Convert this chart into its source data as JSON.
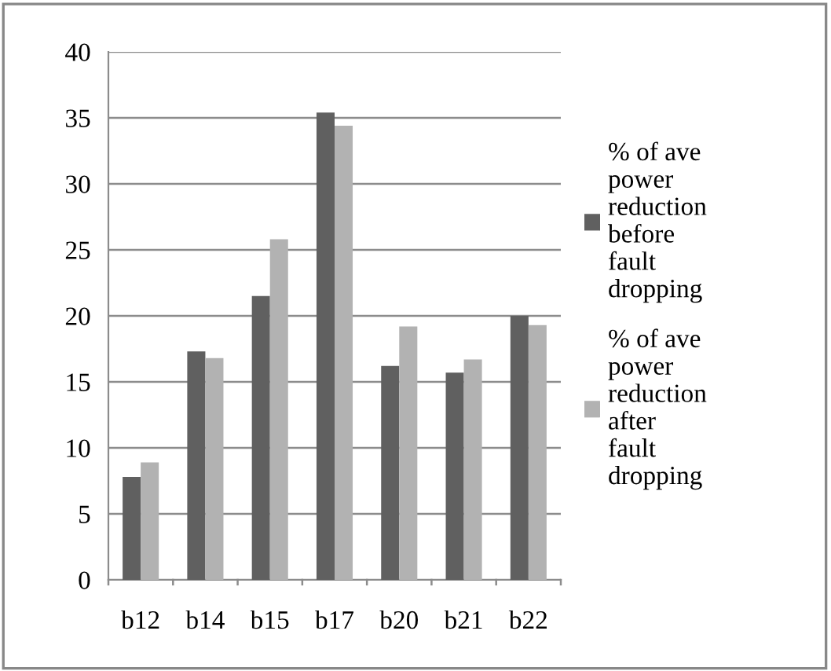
{
  "chart_data": {
    "type": "bar",
    "categories": [
      "b12",
      "b14",
      "b15",
      "b17",
      "b20",
      "b21",
      "b22"
    ],
    "series": [
      {
        "name": "% of ave power reduction before fault dropping",
        "color": "#606060",
        "values": [
          7.8,
          17.3,
          21.5,
          35.4,
          16.2,
          15.7,
          20.0
        ]
      },
      {
        "name": "% of ave power reduction after fault dropping",
        "color": "#b2b2b2",
        "values": [
          8.9,
          16.8,
          25.8,
          34.4,
          19.2,
          16.7,
          19.3
        ]
      }
    ],
    "ylim": [
      0,
      40
    ],
    "yticks": [
      0,
      5,
      10,
      15,
      20,
      25,
      30,
      35,
      40
    ],
    "grid": "y",
    "legend": "right"
  }
}
